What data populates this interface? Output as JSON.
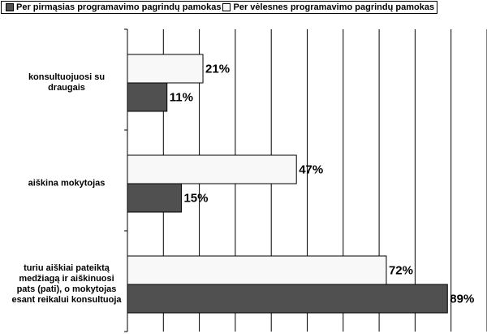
{
  "chart_data": {
    "type": "bar",
    "orientation": "horizontal",
    "categories": [
      "konsultuojuosi su draugais",
      "aiškina mokytojas",
      "turiu aiškiai pateiktą medžiagą ir aiškinuosi pats (pati), o mokytojas esant reikalui konsultuoja"
    ],
    "series": [
      {
        "name": "Per pirmąsias programavimo pagrindų pamokas",
        "color": "#505050",
        "values": [
          11,
          15,
          89
        ],
        "value_labels": [
          "11%",
          "15%",
          "89%"
        ]
      },
      {
        "name": "Per vėlesnes programavimo pagrindų pamokas",
        "color": "#f8f8f8",
        "values": [
          21,
          47,
          72
        ],
        "value_labels": [
          "21%",
          "47%",
          "72%"
        ]
      }
    ],
    "xlim": [
      0,
      100
    ],
    "xticks": [
      0,
      10,
      20,
      30,
      40,
      50,
      60,
      70,
      80,
      90,
      100
    ],
    "grid": true
  }
}
